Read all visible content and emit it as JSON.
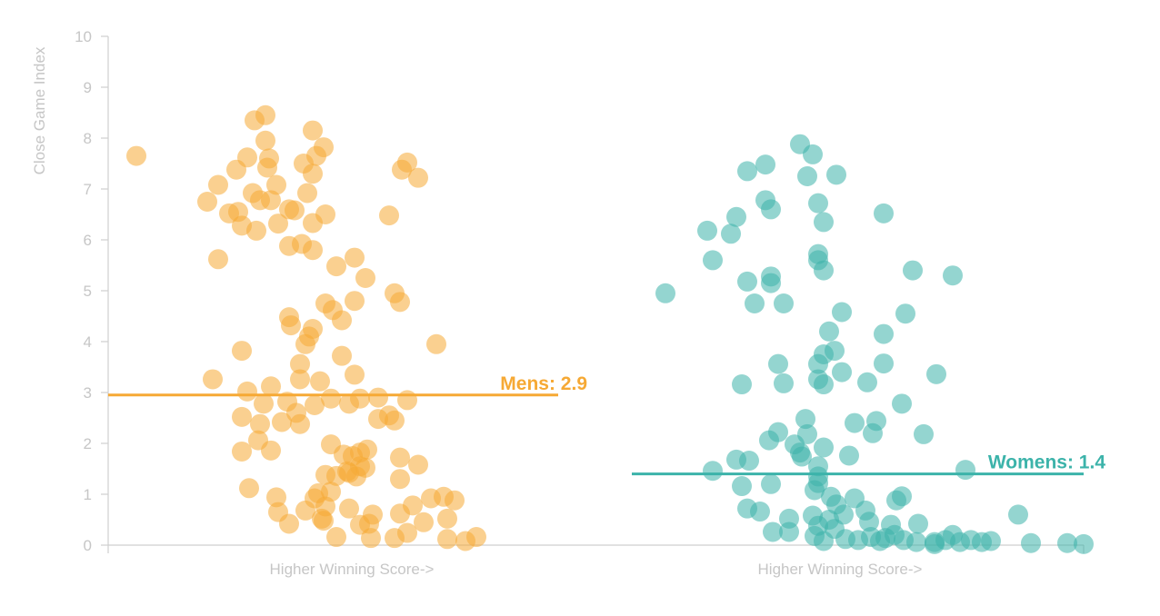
{
  "chart_data": {
    "type": "scatter",
    "ylabel": "Close Game Index",
    "ylim": [
      0,
      10
    ],
    "yticks": [
      "0",
      "1",
      "2",
      "3",
      "4",
      "5",
      "6",
      "7",
      "8",
      "9",
      "10"
    ],
    "xlabel": "Higher Winning Score->",
    "series": [
      {
        "name": "Mens",
        "color": "#f6a935",
        "ref_value": 2.95,
        "ref_label": "Mens: 2.9",
        "points": [
          [
            150,
            7.65
          ],
          [
            228,
            6.75
          ],
          [
            240,
            7.08
          ],
          [
            252,
            6.52
          ],
          [
            260,
            7.38
          ],
          [
            272,
            7.62
          ],
          [
            278,
            6.92
          ],
          [
            286,
            6.78
          ],
          [
            294,
            7.42
          ],
          [
            296,
            7.6
          ],
          [
            304,
            7.08
          ],
          [
            298,
            6.78
          ],
          [
            262,
            6.55
          ],
          [
            266,
            6.28
          ],
          [
            282,
            6.18
          ],
          [
            306,
            6.32
          ],
          [
            318,
            6.6
          ],
          [
            324,
            6.58
          ],
          [
            344,
            6.33
          ],
          [
            358,
            6.5
          ],
          [
            280,
            8.35
          ],
          [
            292,
            8.45
          ],
          [
            292,
            7.95
          ],
          [
            344,
            8.15
          ],
          [
            356,
            7.82
          ],
          [
            348,
            7.65
          ],
          [
            334,
            7.5
          ],
          [
            344,
            7.3
          ],
          [
            338,
            6.92
          ],
          [
            240,
            5.62
          ],
          [
            318,
            5.88
          ],
          [
            332,
            5.92
          ],
          [
            344,
            5.8
          ],
          [
            390,
            5.65
          ],
          [
            370,
            5.48
          ],
          [
            402,
            5.25
          ],
          [
            428,
            6.48
          ],
          [
            442,
            7.38
          ],
          [
            448,
            7.52
          ],
          [
            460,
            7.22
          ],
          [
            358,
            4.75
          ],
          [
            366,
            4.62
          ],
          [
            390,
            4.8
          ],
          [
            318,
            4.48
          ],
          [
            320,
            4.32
          ],
          [
            344,
            4.25
          ],
          [
            340,
            4.1
          ],
          [
            336,
            3.95
          ],
          [
            376,
            4.42
          ],
          [
            434,
            4.95
          ],
          [
            440,
            4.78
          ],
          [
            480,
            3.95
          ],
          [
            266,
            3.82
          ],
          [
            330,
            3.56
          ],
          [
            330,
            3.26
          ],
          [
            352,
            3.22
          ],
          [
            376,
            3.72
          ],
          [
            390,
            3.35
          ],
          [
            234,
            3.26
          ],
          [
            272,
            3.02
          ],
          [
            298,
            3.12
          ],
          [
            290,
            2.78
          ],
          [
            316,
            2.82
          ],
          [
            326,
            2.6
          ],
          [
            346,
            2.75
          ],
          [
            364,
            2.88
          ],
          [
            384,
            2.78
          ],
          [
            396,
            2.88
          ],
          [
            416,
            2.9
          ],
          [
            448,
            2.85
          ],
          [
            428,
            2.55
          ],
          [
            416,
            2.48
          ],
          [
            434,
            2.45
          ],
          [
            266,
            2.52
          ],
          [
            286,
            2.38
          ],
          [
            310,
            2.42
          ],
          [
            330,
            2.38
          ],
          [
            266,
            1.84
          ],
          [
            284,
            2.06
          ],
          [
            298,
            1.86
          ],
          [
            364,
            1.98
          ],
          [
            378,
            1.78
          ],
          [
            388,
            1.75
          ],
          [
            396,
            1.82
          ],
          [
            404,
            1.88
          ],
          [
            382,
            1.45
          ],
          [
            392,
            1.35
          ],
          [
            402,
            1.52
          ],
          [
            384,
            1.42
          ],
          [
            396,
            1.55
          ],
          [
            358,
            1.38
          ],
          [
            370,
            1.36
          ],
          [
            440,
            1.72
          ],
          [
            460,
            1.58
          ],
          [
            440,
            1.3
          ],
          [
            274,
            1.12
          ],
          [
            304,
            0.94
          ],
          [
            306,
            0.65
          ],
          [
            318,
            0.42
          ],
          [
            336,
            0.68
          ],
          [
            346,
            0.92
          ],
          [
            358,
            0.76
          ],
          [
            354,
            0.52
          ],
          [
            350,
            1.02
          ],
          [
            364,
            1.05
          ],
          [
            384,
            0.72
          ],
          [
            356,
            0.48
          ],
          [
            370,
            0.16
          ],
          [
            396,
            0.4
          ],
          [
            406,
            0.42
          ],
          [
            410,
            0.6
          ],
          [
            408,
            0.14
          ],
          [
            440,
            0.62
          ],
          [
            454,
            0.78
          ],
          [
            466,
            0.45
          ],
          [
            474,
            0.92
          ],
          [
            488,
            0.95
          ],
          [
            500,
            0.88
          ],
          [
            492,
            0.52
          ],
          [
            434,
            0.14
          ],
          [
            448,
            0.24
          ],
          [
            492,
            0.12
          ],
          [
            512,
            0.08
          ],
          [
            524,
            0.16
          ]
        ]
      },
      {
        "name": "Womens",
        "color": "#3cb3aa",
        "ref_value": 1.4,
        "ref_label": "Womens: 1.4",
        "points": [
          [
            732,
            4.95
          ],
          [
            778,
            6.18
          ],
          [
            804,
            6.12
          ],
          [
            784,
            5.6
          ],
          [
            810,
            6.45
          ],
          [
            822,
            7.35
          ],
          [
            842,
            7.48
          ],
          [
            842,
            6.78
          ],
          [
            848,
            6.6
          ],
          [
            822,
            5.18
          ],
          [
            848,
            5.28
          ],
          [
            848,
            5.15
          ],
          [
            830,
            4.75
          ],
          [
            862,
            4.75
          ],
          [
            880,
            7.88
          ],
          [
            894,
            7.68
          ],
          [
            888,
            7.25
          ],
          [
            920,
            7.28
          ],
          [
            900,
            6.72
          ],
          [
            906,
            6.35
          ],
          [
            972,
            6.52
          ],
          [
            900,
            5.72
          ],
          [
            900,
            5.6
          ],
          [
            906,
            5.4
          ],
          [
            1004,
            5.4
          ],
          [
            1048,
            5.3
          ],
          [
            926,
            4.58
          ],
          [
            996,
            4.55
          ],
          [
            912,
            4.2
          ],
          [
            972,
            4.15
          ],
          [
            906,
            3.75
          ],
          [
            918,
            3.82
          ],
          [
            900,
            3.56
          ],
          [
            926,
            3.4
          ],
          [
            972,
            3.57
          ],
          [
            856,
            3.56
          ],
          [
            816,
            3.16
          ],
          [
            862,
            3.18
          ],
          [
            900,
            3.26
          ],
          [
            906,
            3.16
          ],
          [
            954,
            3.2
          ],
          [
            1030,
            3.36
          ],
          [
            992,
            2.78
          ],
          [
            886,
            2.48
          ],
          [
            940,
            2.4
          ],
          [
            964,
            2.44
          ],
          [
            960,
            2.2
          ],
          [
            1016,
            2.18
          ],
          [
            846,
            2.06
          ],
          [
            856,
            2.22
          ],
          [
            874,
            1.98
          ],
          [
            880,
            1.82
          ],
          [
            888,
            2.18
          ],
          [
            906,
            1.92
          ],
          [
            882,
            1.74
          ],
          [
            934,
            1.76
          ],
          [
            810,
            1.68
          ],
          [
            824,
            1.66
          ],
          [
            784,
            1.46
          ],
          [
            816,
            1.16
          ],
          [
            848,
            1.2
          ],
          [
            900,
            1.55
          ],
          [
            900,
            1.35
          ],
          [
            900,
            1.22
          ],
          [
            896,
            1.08
          ],
          [
            914,
            0.95
          ],
          [
            940,
            0.92
          ],
          [
            986,
            0.88
          ],
          [
            992,
            0.96
          ],
          [
            822,
            0.72
          ],
          [
            836,
            0.66
          ],
          [
            920,
            0.8
          ],
          [
            928,
            0.6
          ],
          [
            952,
            0.68
          ],
          [
            1010,
            0.42
          ],
          [
            1062,
            1.48
          ],
          [
            1120,
            0.6
          ],
          [
            850,
            0.26
          ],
          [
            868,
            0.26
          ],
          [
            868,
            0.52
          ],
          [
            894,
            0.58
          ],
          [
            900,
            0.38
          ],
          [
            912,
            0.5
          ],
          [
            918,
            0.32
          ],
          [
            956,
            0.46
          ],
          [
            980,
            0.4
          ],
          [
            896,
            0.18
          ],
          [
            906,
            0.08
          ],
          [
            930,
            0.12
          ],
          [
            944,
            0.1
          ],
          [
            958,
            0.16
          ],
          [
            968,
            0.08
          ],
          [
            974,
            0.14
          ],
          [
            984,
            0.2
          ],
          [
            994,
            0.1
          ],
          [
            1008,
            0.06
          ],
          [
            1028,
            0.06
          ],
          [
            1040,
            0.1
          ],
          [
            1048,
            0.2
          ],
          [
            1056,
            0.06
          ],
          [
            1068,
            0.1
          ],
          [
            1080,
            0.06
          ],
          [
            1090,
            0.08
          ],
          [
            1134,
            0.04
          ],
          [
            1174,
            0.04
          ],
          [
            1192,
            0.02
          ],
          [
            1028,
            0.02
          ]
        ]
      }
    ]
  }
}
